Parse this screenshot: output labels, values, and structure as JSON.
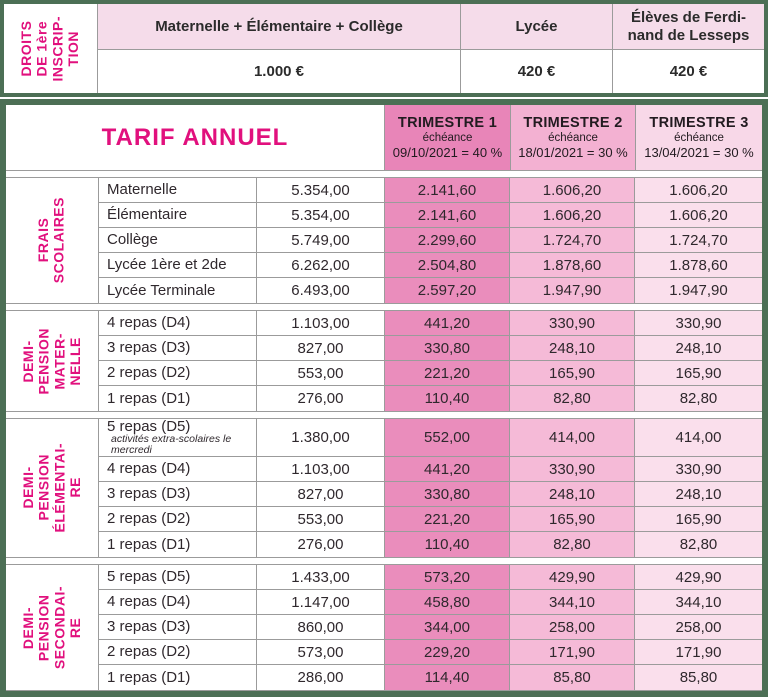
{
  "colors": {
    "border_green": "#4C6F55",
    "accent_magenta": "#E1107D",
    "header_light_pink": "#F5DCEA",
    "trimester1_pink": "#E885B8",
    "trimester2_pink": "#F3B1D2",
    "trimester3_pink": "#F8D8E8"
  },
  "top_table": {
    "row_header": "DROITS\nDE 1ère\nINSCRIP-\nTION",
    "columns": [
      {
        "label": "Maternelle + Élémentaire + Collège",
        "value": "1.000 €"
      },
      {
        "label": "Lycée",
        "value": "420 €"
      },
      {
        "label": "Élèves de Ferdi-\nnand de Lesseps",
        "value": "420 €"
      }
    ]
  },
  "main_table": {
    "title": "TARIF ANNUEL",
    "trimesters": [
      {
        "name": "TRIMESTRE 1",
        "echeance_label": "échéance",
        "due": "09/10/2021 = 40 %"
      },
      {
        "name": "TRIMESTRE 2",
        "echeance_label": "échéance",
        "due": "18/01/2021 = 30 %"
      },
      {
        "name": "TRIMESTRE 3",
        "echeance_label": "échéance",
        "due": "13/04/2021 = 30 %"
      }
    ],
    "sections": [
      {
        "label": "FRAIS\nSCOLAIRES",
        "rows": [
          {
            "label": "Maternelle",
            "annual": "5.354,00",
            "t1": "2.141,60",
            "t2": "1.606,20",
            "t3": "1.606,20"
          },
          {
            "label": "Élémentaire",
            "annual": "5.354,00",
            "t1": "2.141,60",
            "t2": "1.606,20",
            "t3": "1.606,20"
          },
          {
            "label": "Collège",
            "annual": "5.749,00",
            "t1": "2.299,60",
            "t2": "1.724,70",
            "t3": "1.724,70"
          },
          {
            "label": "Lycée 1ère et 2de",
            "annual": "6.262,00",
            "t1": "2.504,80",
            "t2": "1.878,60",
            "t3": "1.878,60"
          },
          {
            "label": "Lycée Terminale",
            "annual": "6.493,00",
            "t1": "2.597,20",
            "t2": "1.947,90",
            "t3": "1.947,90"
          }
        ]
      },
      {
        "label": "DEMI-\nPENSION\nMATER-\nNELLE",
        "rows": [
          {
            "label": "4 repas (D4)",
            "annual": "1.103,00",
            "t1": "441,20",
            "t2": "330,90",
            "t3": "330,90"
          },
          {
            "label": "3 repas (D3)",
            "annual": "827,00",
            "t1": "330,80",
            "t2": "248,10",
            "t3": "248,10"
          },
          {
            "label": "2 repas (D2)",
            "annual": "553,00",
            "t1": "221,20",
            "t2": "165,90",
            "t3": "165,90"
          },
          {
            "label": "1 repas (D1)",
            "annual": "276,00",
            "t1": "110,40",
            "t2": "82,80",
            "t3": "82,80"
          }
        ]
      },
      {
        "label": "DEMI-\nPENSION\nÉLÉMENTAI-\nRE",
        "rows": [
          {
            "label": "5 repas (D5)",
            "note": "activités extra-scolaires le mercredi",
            "annual": "1.380,00",
            "t1": "552,00",
            "t2": "414,00",
            "t3": "414,00"
          },
          {
            "label": "4 repas (D4)",
            "annual": "1.103,00",
            "t1": "441,20",
            "t2": "330,90",
            "t3": "330,90"
          },
          {
            "label": "3 repas (D3)",
            "annual": "827,00",
            "t1": "330,80",
            "t2": "248,10",
            "t3": "248,10"
          },
          {
            "label": "2 repas (D2)",
            "annual": "553,00",
            "t1": "221,20",
            "t2": "165,90",
            "t3": "165,90"
          },
          {
            "label": "1 repas (D1)",
            "annual": "276,00",
            "t1": "110,40",
            "t2": "82,80",
            "t3": "82,80"
          }
        ]
      },
      {
        "label": "DEMI-\nPENSION\nSECONDAI-\nRE",
        "rows": [
          {
            "label": "5 repas (D5)",
            "annual": "1.433,00",
            "t1": "573,20",
            "t2": "429,90",
            "t3": "429,90"
          },
          {
            "label": "4 repas (D4)",
            "annual": "1.147,00",
            "t1": "458,80",
            "t2": "344,10",
            "t3": "344,10"
          },
          {
            "label": "3 repas (D3)",
            "annual": "860,00",
            "t1": "344,00",
            "t2": "258,00",
            "t3": "258,00"
          },
          {
            "label": "2 repas (D2)",
            "annual": "573,00",
            "t1": "229,20",
            "t2": "171,90",
            "t3": "171,90"
          },
          {
            "label": "1 repas (D1)",
            "annual": "286,00",
            "t1": "114,40",
            "t2": "85,80",
            "t3": "85,80"
          }
        ]
      }
    ]
  }
}
